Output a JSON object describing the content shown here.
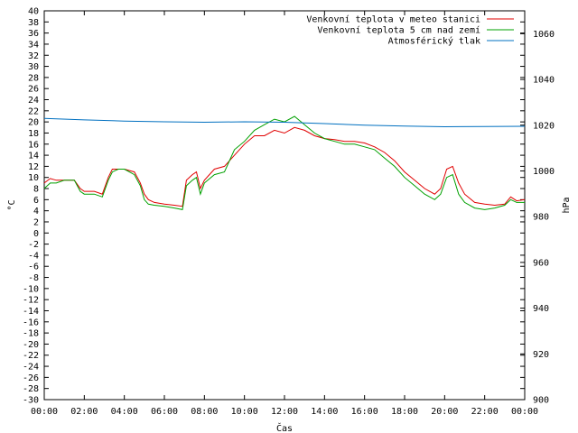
{
  "chart_data": {
    "type": "line",
    "xlabel": "Čas",
    "ylabel": "°C",
    "y2label": "hPa",
    "xlim": [
      0,
      24
    ],
    "ylim": [
      -30,
      40
    ],
    "y2lim": [
      900,
      1070
    ],
    "grid": false,
    "legend_position": "top-right",
    "x_ticks": [
      "00:00",
      "02:00",
      "04:00",
      "06:00",
      "08:00",
      "10:00",
      "12:00",
      "14:00",
      "16:00",
      "18:00",
      "20:00",
      "22:00",
      "00:00"
    ],
    "y_ticks": [
      "-30",
      "-28",
      "-26",
      "-24",
      "-22",
      "-20",
      "-18",
      "-16",
      "-14",
      "-12",
      "-10",
      "-8",
      "-6",
      "-4",
      "-2",
      "0",
      "2",
      "4",
      "6",
      "8",
      "10",
      "12",
      "14",
      "16",
      "18",
      "20",
      "22",
      "24",
      "26",
      "28",
      "30",
      "32",
      "34",
      "36",
      "38",
      "40"
    ],
    "y2_ticks": [
      "900",
      "920",
      "940",
      "960",
      "980",
      "1000",
      "1020",
      "1040",
      "1060"
    ],
    "series": [
      {
        "name": "Venkovní teplota v meteo stanici",
        "color": "#e00000",
        "axis": "y",
        "x": [
          0,
          0.3,
          0.6,
          1.0,
          1.5,
          1.8,
          2.0,
          2.5,
          2.9,
          3.2,
          3.4,
          3.7,
          4.0,
          4.5,
          4.8,
          5.0,
          5.2,
          5.5,
          6.0,
          6.5,
          6.9,
          7.1,
          7.4,
          7.6,
          7.8,
          8.0,
          8.5,
          9.0,
          9.5,
          10.0,
          10.5,
          11.0,
          11.5,
          12.0,
          12.5,
          13.0,
          13.5,
          14.0,
          14.5,
          15.0,
          15.5,
          16.0,
          16.5,
          17.0,
          17.5,
          18.0,
          18.5,
          19.0,
          19.5,
          19.8,
          20.1,
          20.4,
          20.7,
          21.0,
          21.5,
          22.0,
          22.5,
          23.0,
          23.3,
          23.6,
          24.0
        ],
        "values": [
          9.0,
          9.8,
          9.5,
          9.5,
          9.5,
          8.0,
          7.5,
          7.5,
          7.0,
          10.0,
          11.5,
          11.5,
          11.5,
          11.0,
          9.0,
          7.0,
          6.0,
          5.5,
          5.2,
          5.0,
          4.8,
          9.5,
          10.5,
          11.0,
          8.0,
          9.5,
          11.5,
          12.0,
          14.0,
          16.0,
          17.5,
          17.5,
          18.5,
          18.0,
          19.0,
          18.5,
          17.5,
          17.0,
          16.8,
          16.5,
          16.5,
          16.2,
          15.5,
          14.5,
          13.0,
          11.0,
          9.5,
          8.0,
          7.0,
          8.0,
          11.5,
          12.0,
          9.0,
          7.0,
          5.5,
          5.2,
          5.0,
          5.2,
          6.5,
          5.8,
          6.0
        ]
      },
      {
        "name": "Venkovní teplota 5 cm nad zemí",
        "color": "#00a000",
        "axis": "y",
        "x": [
          0,
          0.3,
          0.6,
          1.0,
          1.5,
          1.8,
          2.0,
          2.5,
          2.9,
          3.2,
          3.4,
          3.7,
          4.0,
          4.5,
          4.8,
          5.0,
          5.2,
          5.5,
          6.0,
          6.5,
          6.9,
          7.1,
          7.4,
          7.6,
          7.8,
          8.0,
          8.5,
          9.0,
          9.5,
          10.0,
          10.5,
          11.0,
          11.5,
          12.0,
          12.5,
          13.0,
          13.5,
          14.0,
          14.5,
          15.0,
          15.5,
          16.0,
          16.5,
          17.0,
          17.5,
          18.0,
          18.5,
          19.0,
          19.5,
          19.8,
          20.1,
          20.4,
          20.7,
          21.0,
          21.5,
          22.0,
          22.5,
          23.0,
          23.3,
          23.6,
          24.0
        ],
        "values": [
          8.0,
          9.0,
          9.0,
          9.5,
          9.5,
          7.5,
          7.0,
          7.0,
          6.5,
          9.5,
          11.0,
          11.5,
          11.5,
          10.5,
          8.5,
          6.0,
          5.2,
          5.0,
          4.8,
          4.5,
          4.2,
          8.5,
          9.5,
          10.0,
          7.0,
          9.0,
          10.5,
          11.0,
          15.0,
          16.5,
          18.5,
          19.5,
          20.5,
          20.0,
          21.0,
          19.5,
          18.0,
          17.0,
          16.5,
          16.0,
          16.0,
          15.5,
          15.0,
          13.5,
          12.0,
          10.0,
          8.5,
          7.0,
          6.0,
          7.0,
          10.0,
          10.5,
          7.0,
          5.5,
          4.5,
          4.2,
          4.5,
          5.0,
          6.0,
          5.5,
          5.5
        ]
      },
      {
        "name": "Atmosférický tlak",
        "color": "#0070c0",
        "axis": "y2",
        "x": [
          0,
          2,
          4,
          6,
          8,
          10,
          12,
          14,
          16,
          18,
          20,
          22,
          24
        ],
        "values": [
          1023.0,
          1022.3,
          1021.8,
          1021.5,
          1021.3,
          1021.5,
          1021.3,
          1020.7,
          1020.0,
          1019.6,
          1019.3,
          1019.4,
          1019.5
        ]
      }
    ]
  }
}
